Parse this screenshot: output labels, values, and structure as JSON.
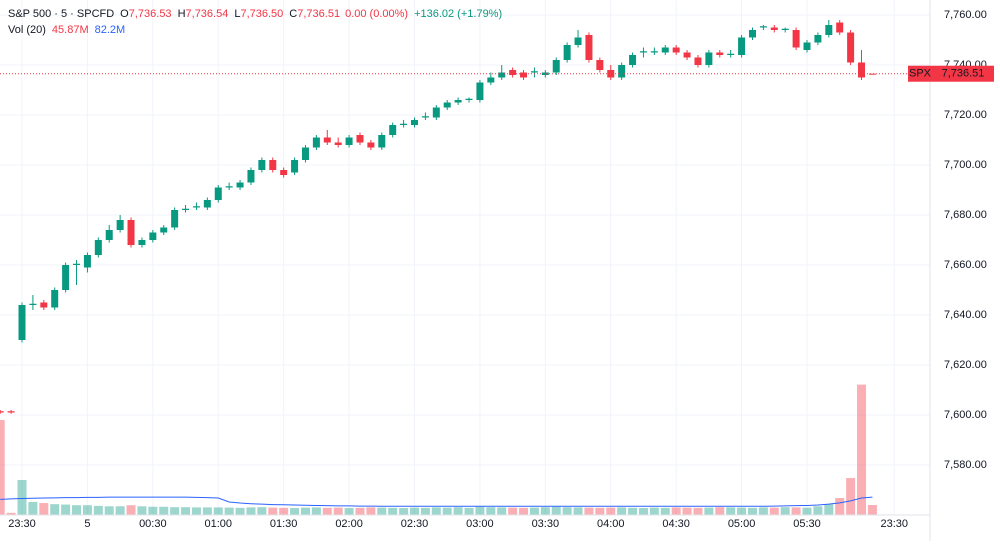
{
  "header": {
    "symbol": "S&P 500 · 5 · SPCFD",
    "ohlc": [
      {
        "key": "O",
        "value": "7,736.53"
      },
      {
        "key": "H",
        "value": "7,736.54"
      },
      {
        "key": "L",
        "value": "7,736.50"
      },
      {
        "key": "C",
        "value": "7,736.51"
      }
    ],
    "change": "0.00 (0.00%)",
    "day_change": "+136.02 (+1.79%)",
    "vol_title": "Vol (20)",
    "vol_value": "45.87M",
    "vol_ma": "82.2M"
  },
  "chart_data": {
    "type": "candlestick",
    "up_color": "#089981",
    "down_color": "#f23645",
    "ma_color": "#2962ff",
    "open": [
      7601.5,
      7601.5,
      7630,
      7644,
      7645,
      7643,
      7650,
      7660,
      7659,
      7664,
      7670,
      7674,
      7678,
      7668,
      7670,
      7673,
      7675,
      7682,
      7683,
      7683,
      7686,
      7691,
      7691,
      7693,
      7698,
      7702,
      7698,
      7697,
      7702,
      7707,
      7711,
      7709,
      7708,
      7712,
      7709,
      7707,
      7712,
      7716,
      7716,
      7719,
      7719,
      7723,
      7725,
      7726,
      7726,
      7733,
      7735,
      7738,
      7737,
      7737,
      7736,
      7737,
      7742,
      7748,
      7752,
      7742,
      7738,
      7735,
      7740,
      7745,
      7745,
      7745,
      7747,
      7745,
      7743,
      7740,
      7745,
      7744,
      7744,
      7751,
      7755,
      7755,
      7754,
      7754,
      7746,
      7749,
      7752,
      7757,
      7753,
      7741,
      7736.53
    ],
    "high": [
      7602,
      7602,
      7645,
      7648,
      7646,
      7651,
      7661,
      7662,
      7665,
      7671,
      7676,
      7680,
      7679,
      7671,
      7674,
      7676,
      7683,
      7684,
      7685,
      7687,
      7692,
      7693,
      7694,
      7699,
      7703,
      7703,
      7699,
      7703,
      7708,
      7712,
      7714,
      7711,
      7712,
      7713,
      7710,
      7713,
      7717,
      7718,
      7719,
      7721,
      7724,
      7726,
      7727,
      7727,
      7734,
      7737,
      7740,
      7739,
      7738,
      7739,
      7738,
      7743,
      7749,
      7754,
      7753,
      7743,
      7740,
      7741,
      7745,
      7747,
      7747,
      7748,
      7748,
      7746,
      7744,
      7746,
      7746,
      7746,
      7752,
      7755,
      7756,
      7756,
      7755,
      7755,
      7750,
      7753,
      7758,
      7758,
      7754,
      7746,
      7736.54
    ],
    "low": [
      7600.5,
      7600.5,
      7629,
      7642,
      7642,
      7642,
      7649,
      7652,
      7657,
      7663,
      7669,
      7673,
      7667,
      7667,
      7669,
      7672,
      7674,
      7681,
      7682,
      7682,
      7685,
      7690,
      7690,
      7692,
      7697,
      7697,
      7695,
      7696,
      7701,
      7706,
      7708,
      7707,
      7707,
      7708,
      7706,
      7706,
      7711,
      7715,
      7715,
      7718,
      7718,
      7722,
      7724,
      7725,
      7725,
      7732,
      7734,
      7735,
      7734,
      7735,
      7735,
      7736,
      7741,
      7747,
      7741,
      7737,
      7734,
      7734,
      7739,
      7743,
      7744,
      7744,
      7744,
      7742,
      7739,
      7739,
      7743,
      7743,
      7743,
      7750,
      7754,
      7753,
      7753,
      7746,
      7745,
      7748,
      7751,
      7752,
      7740,
      7734,
      7736.5
    ],
    "close": [
      7601,
      7601,
      7644,
      7644.5,
      7643,
      7650,
      7660,
      7660.5,
      7664,
      7670,
      7674,
      7678,
      7668,
      7670,
      7673,
      7675,
      7682,
      7682.5,
      7683.5,
      7686,
      7691,
      7691.5,
      7693,
      7698,
      7702,
      7698,
      7696,
      7702,
      7707,
      7711,
      7709,
      7708,
      7711,
      7709,
      7707,
      7712,
      7716,
      7716.5,
      7718,
      7719.5,
      7723,
      7725,
      7726,
      7726.5,
      7733,
      7735,
      7737,
      7736,
      7735,
      7737.5,
      7737,
      7742,
      7748,
      7751,
      7742,
      7738,
      7735,
      7740,
      7744,
      7745.5,
      7745.5,
      7747,
      7745,
      7743,
      7740,
      7745,
      7744,
      7744.5,
      7751,
      7754,
      7755.5,
      7754,
      7754.5,
      7747,
      7749,
      7752,
      7756,
      7753,
      7741,
      7735,
      7736.51
    ],
    "volume": [
      437,
      10,
      161,
      60,
      55,
      50,
      48,
      45,
      45,
      42,
      40,
      40,
      45,
      40,
      38,
      38,
      36,
      36,
      35,
      35,
      35,
      34,
      33,
      35,
      36,
      34,
      33,
      32,
      34,
      35,
      33,
      34,
      32,
      33,
      35,
      34,
      33,
      32,
      34,
      33,
      35,
      34,
      36,
      33,
      38,
      36,
      35,
      34,
      33,
      34,
      36,
      38,
      36,
      35,
      34,
      33,
      34,
      35,
      33,
      32,
      34,
      33,
      35,
      34,
      33,
      34,
      36,
      35,
      34,
      33,
      35,
      34,
      36,
      35,
      34,
      40,
      50,
      78,
      170,
      600,
      45.87
    ],
    "volume_ma": [
      72,
      74,
      76,
      77,
      78,
      79,
      80,
      80,
      81,
      81,
      82,
      82,
      82,
      82,
      82,
      82,
      82,
      82,
      81,
      80,
      78,
      60,
      55,
      52,
      50,
      48,
      47,
      46,
      45,
      44,
      43,
      42,
      42,
      41,
      41,
      40,
      40,
      40,
      40,
      40,
      40,
      40,
      40,
      40,
      40,
      40,
      40,
      40,
      40,
      40,
      40,
      40,
      40,
      40,
      40,
      40,
      40,
      40,
      40,
      40,
      40,
      40,
      40,
      40,
      40,
      40,
      40,
      40,
      40,
      40,
      40,
      41,
      42,
      43,
      44,
      46,
      50,
      56,
      65,
      78,
      82.2
    ],
    "volume_ylim": [
      0,
      2370
    ],
    "xlim": [
      0,
      85.3
    ],
    "xticks": [
      {
        "value": 2,
        "label": "23:30"
      },
      {
        "value": 8,
        "label": "5"
      },
      {
        "value": 14,
        "label": "00:30"
      },
      {
        "value": 20,
        "label": "01:00"
      },
      {
        "value": 26,
        "label": "01:30"
      },
      {
        "value": 32,
        "label": "02:00"
      },
      {
        "value": 38,
        "label": "02:30"
      },
      {
        "value": 44,
        "label": "03:00"
      },
      {
        "value": 50,
        "label": "03:30"
      },
      {
        "value": 56,
        "label": "04:00"
      },
      {
        "value": 62,
        "label": "04:30"
      },
      {
        "value": 68,
        "label": "05:00"
      },
      {
        "value": 74,
        "label": "05:30"
      },
      {
        "value": 82,
        "label": "23:30"
      }
    ],
    "ylim": [
      7560,
      7766
    ],
    "yticks": [
      {
        "value": 7760,
        "label": "7,760.00"
      },
      {
        "value": 7740,
        "label": "7,740.00"
      },
      {
        "value": 7720,
        "label": "7,720.00"
      },
      {
        "value": 7700,
        "label": "7,700.00"
      },
      {
        "value": 7680,
        "label": "7,680.00"
      },
      {
        "value": 7660,
        "label": "7,660.00"
      },
      {
        "value": 7640,
        "label": "7,640.00"
      },
      {
        "value": 7620,
        "label": "7,620.00"
      },
      {
        "value": 7600,
        "label": "7,600.00"
      },
      {
        "value": 7580,
        "label": "7,580.00"
      }
    ],
    "grid": true,
    "price_tag": "SPX",
    "last_price_label": "7,736.51"
  }
}
